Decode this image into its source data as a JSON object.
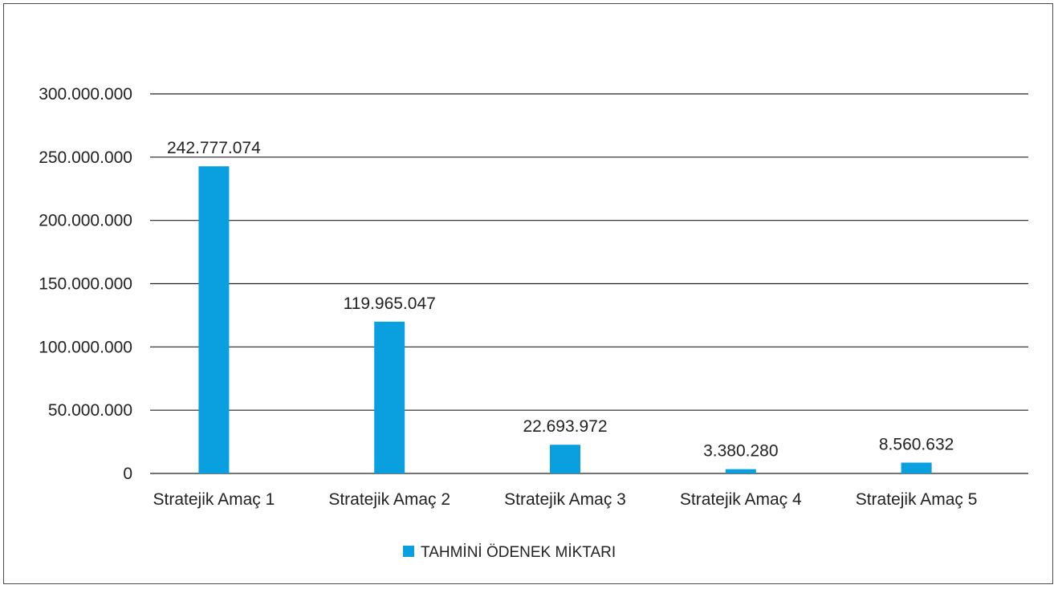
{
  "chart_data": {
    "type": "bar",
    "title": "",
    "xlabel": "",
    "ylabel": "",
    "categories": [
      "Stratejik Amaç 1",
      "Stratejik Amaç 2",
      "Stratejik Amaç 3",
      "Stratejik Amaç 4",
      "Stratejik Amaç 5"
    ],
    "series": [
      {
        "name": "TAHMİNİ ÖDENEK MİKTARI",
        "values": [
          242777074,
          119965047,
          22693972,
          3380280,
          8560632
        ],
        "data_labels": [
          "242.777.074",
          "119.965.047",
          "22.693.972",
          "3.380.280",
          "8.560.632"
        ],
        "color": "#0aa0e0"
      }
    ],
    "ylim": [
      0,
      300000000
    ],
    "yticks": [
      0,
      50000000,
      100000000,
      150000000,
      200000000,
      250000000,
      300000000
    ],
    "ytick_labels": [
      "0",
      "50.000.000",
      "100.000.000",
      "150.000.000",
      "200.000.000",
      "250.000.000",
      "300.000.000"
    ],
    "grid": true,
    "legend_position": "bottom"
  }
}
